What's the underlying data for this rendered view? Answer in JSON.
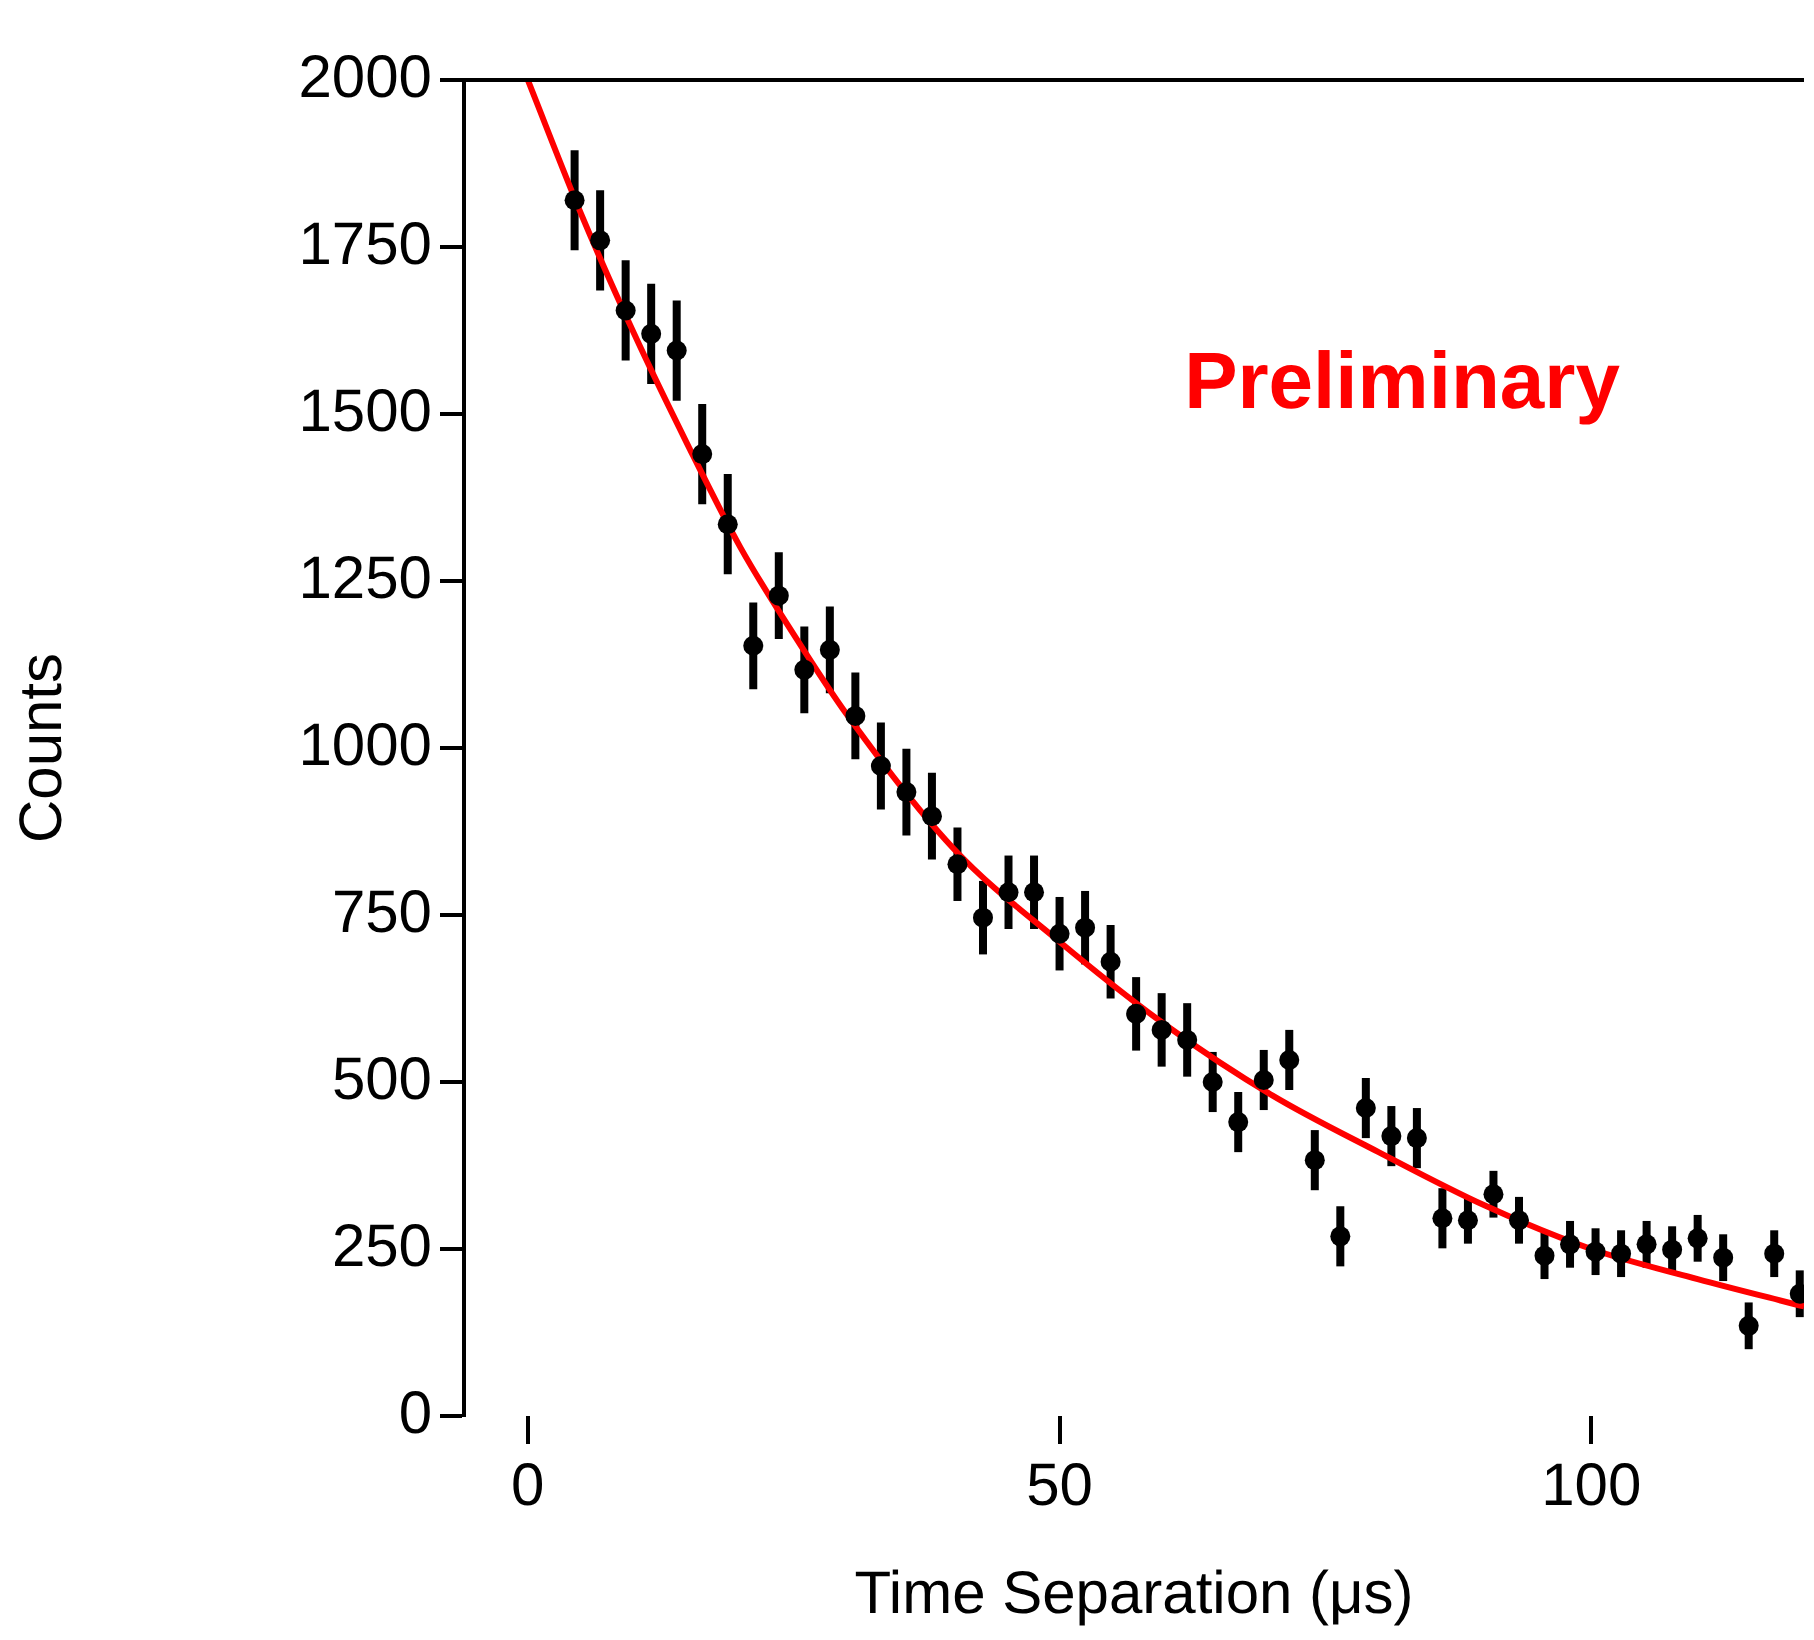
{
  "chart_data": {
    "type": "scatter",
    "xlabel": "Time Separation (μs)",
    "ylabel": "Counts",
    "xlim": [
      -6,
      120
    ],
    "xticks": [
      0,
      50,
      100
    ],
    "ylim": [
      0,
      2000
    ],
    "yticks": [
      0,
      250,
      500,
      750,
      1000,
      1250,
      1500,
      1750,
      2000
    ],
    "grid": false,
    "legend": false,
    "marker": "circle",
    "annotations": [
      "Preliminary"
    ],
    "series": [
      {
        "color": "#000000",
        "x": [
          4.4,
          6.8,
          9.2,
          11.6,
          14,
          16.4,
          18.8,
          21.2,
          23.6,
          26,
          28.4,
          30.8,
          33.2,
          35.6,
          38,
          40.4,
          42.8,
          45.2,
          47.6,
          50,
          52.4,
          54.8,
          57.2,
          59.6,
          62,
          64.4,
          66.8,
          69.2,
          71.6,
          74,
          76.4,
          78.8,
          81.2,
          83.6,
          86,
          88.4,
          90.8,
          93.2,
          95.6,
          98,
          100.4,
          102.8,
          105.2,
          107.6,
          110,
          112.4,
          114.8,
          117.2,
          119.6
        ],
        "values": [
          1820,
          1760,
          1655,
          1620,
          1595,
          1440,
          1335,
          1153,
          1228,
          1117,
          1147,
          1048,
          973,
          934,
          898,
          826,
          746,
          784,
          784,
          722,
          731,
          680,
          602,
          578,
          563,
          500,
          440,
          503,
          533,
          383,
          269,
          461,
          419,
          416,
          296,
          293,
          332,
          293,
          240,
          257,
          246,
          243,
          257,
          249,
          266,
          237,
          135,
          243,
          183
        ],
        "errors": [
          75,
          75,
          75,
          75,
          75,
          75,
          75,
          65,
          65,
          65,
          65,
          65,
          65,
          65,
          65,
          55,
          55,
          55,
          55,
          55,
          55,
          55,
          55,
          55,
          55,
          45,
          45,
          45,
          45,
          45,
          45,
          45,
          45,
          45,
          45,
          35,
          35,
          35,
          35,
          35,
          35,
          35,
          35,
          35,
          35,
          35,
          35,
          35,
          35
        ]
      },
      {
        "type": "line",
        "color": "#ff0000",
        "marker": "none",
        "line_style": "solid",
        "x": [
          0,
          5,
          10,
          15,
          20,
          25,
          30,
          40,
          50,
          60,
          70,
          80,
          90,
          100,
          110,
          120
        ],
        "values": [
          2000,
          1800,
          1620,
          1455,
          1300,
          1170,
          1050,
          850,
          710,
          585,
          480,
          395,
          315,
          250,
          205,
          164
        ]
      }
    ]
  }
}
